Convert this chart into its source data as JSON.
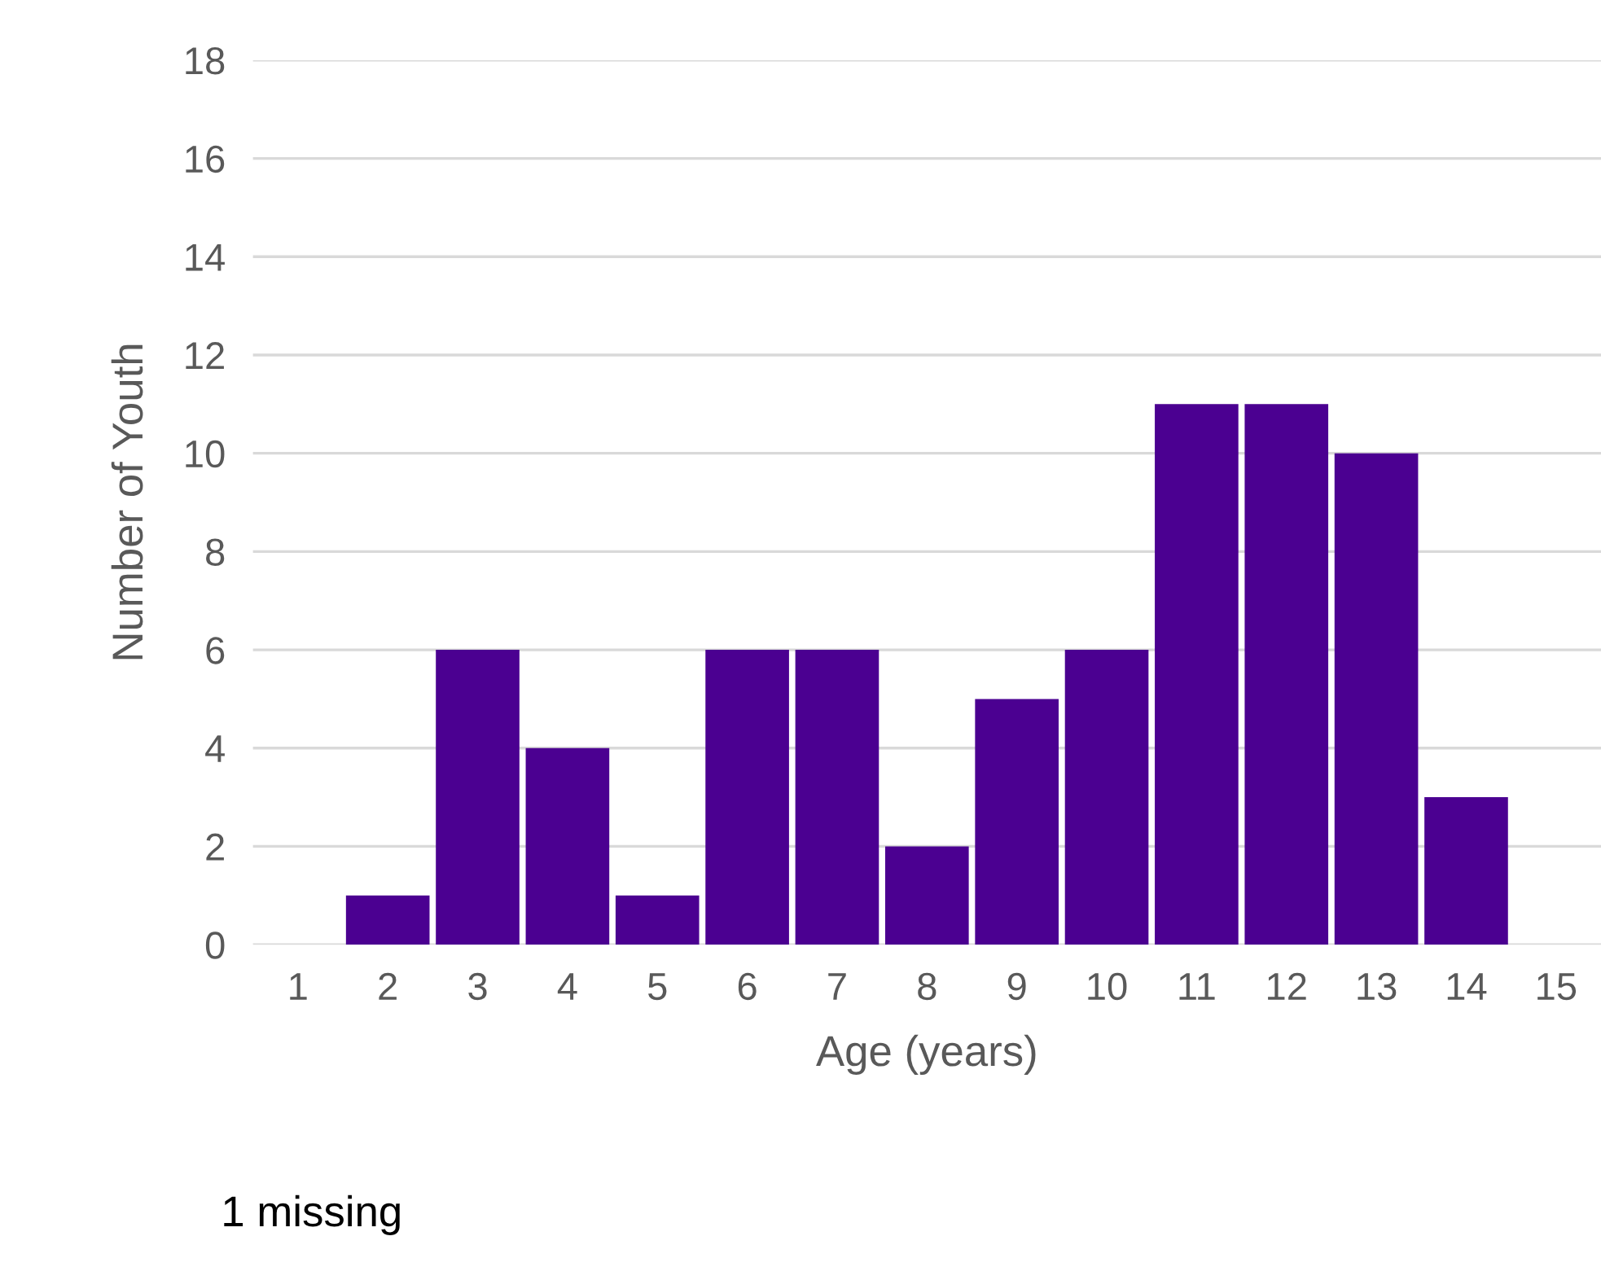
{
  "chart_data": {
    "type": "bar",
    "xlabel": "Age (years)",
    "ylabel": "Number of Youth",
    "categories": [
      "1",
      "2",
      "3",
      "4",
      "5",
      "6",
      "7",
      "8",
      "9",
      "10",
      "11",
      "12",
      "13",
      "14",
      "15"
    ],
    "values": [
      0,
      1,
      6,
      4,
      1,
      6,
      6,
      2,
      5,
      6,
      11,
      11,
      10,
      3,
      0
    ],
    "color": "#4b0091",
    "ylim": [
      0,
      18
    ],
    "yticks": [
      0,
      2,
      4,
      6,
      8,
      10,
      12,
      14,
      16,
      18
    ],
    "grid": "y",
    "annotations": [
      "1 missing"
    ]
  }
}
